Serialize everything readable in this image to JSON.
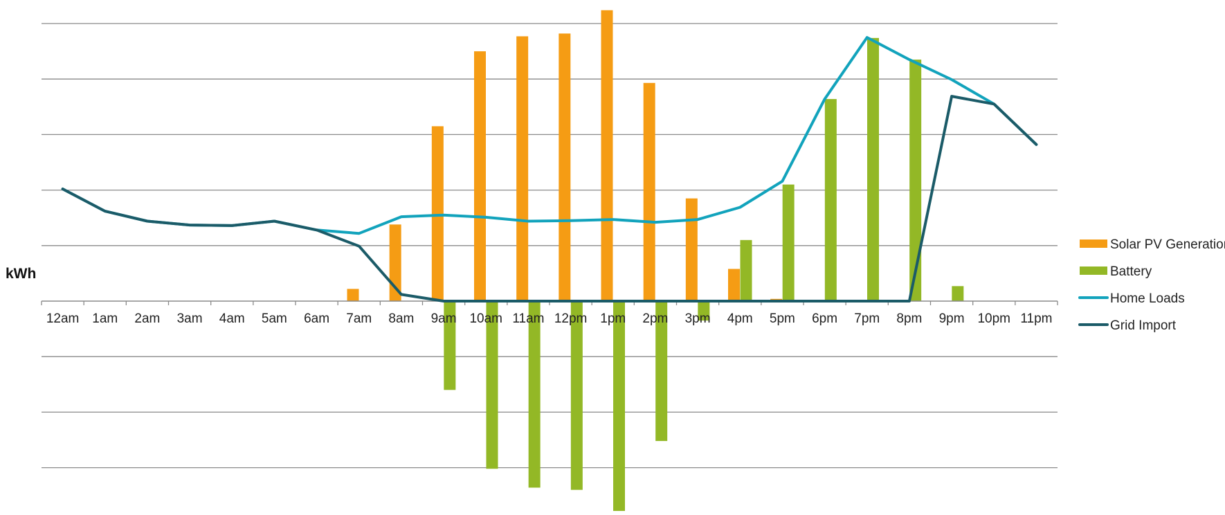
{
  "chart_data": {
    "type": "bar",
    "title": "",
    "xlabel": "",
    "ylabel": "kWh",
    "ylim": [
      -3.8,
      5.4
    ],
    "grid_step": 1,
    "grid": true,
    "legend_position": "right",
    "categories": [
      "12am",
      "1am",
      "2am",
      "3am",
      "4am",
      "5am",
      "6am",
      "7am",
      "8am",
      "9am",
      "10am",
      "11am",
      "12pm",
      "1pm",
      "2pm",
      "3pm",
      "4pm",
      "5pm",
      "6pm",
      "7pm",
      "8pm",
      "9pm",
      "10pm",
      "11pm"
    ],
    "series": [
      {
        "name": "Solar PV Generation",
        "type": "bar",
        "color": "#F59C14",
        "values": [
          0,
          0,
          0,
          0,
          0,
          0,
          0,
          0.22,
          1.38,
          3.15,
          4.5,
          4.77,
          4.82,
          5.24,
          3.93,
          1.85,
          0.58,
          0.04,
          0,
          0,
          0,
          0,
          0,
          0
        ]
      },
      {
        "name": "Battery",
        "type": "bar",
        "color": "#93B826",
        "values": [
          0,
          0,
          0,
          0,
          0,
          0,
          0,
          0,
          0,
          -1.6,
          -3.02,
          -3.36,
          -3.4,
          -3.78,
          -2.52,
          -0.35,
          1.1,
          2.1,
          3.64,
          4.74,
          4.35,
          0.27,
          0,
          0
        ]
      },
      {
        "name": "Home Loads",
        "type": "line",
        "color": "#12A3BC",
        "values": [
          2.02,
          1.62,
          1.44,
          1.37,
          1.36,
          1.44,
          1.28,
          1.22,
          1.52,
          1.55,
          1.51,
          1.44,
          1.45,
          1.47,
          1.42,
          1.47,
          1.69,
          2.16,
          3.64,
          4.75,
          4.35,
          3.99,
          3.55,
          2.82
        ]
      },
      {
        "name": "Grid Import",
        "type": "line",
        "color": "#1B5B68",
        "values": [
          2.02,
          1.62,
          1.44,
          1.37,
          1.36,
          1.44,
          1.28,
          0.99,
          0.12,
          0,
          0,
          0,
          0,
          0,
          0,
          0,
          0,
          0,
          0,
          0,
          0,
          3.69,
          3.55,
          2.82
        ]
      }
    ]
  }
}
